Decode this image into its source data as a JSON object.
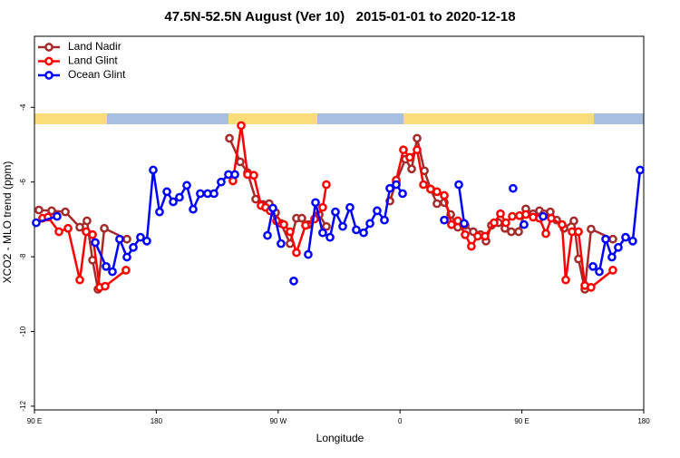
{
  "chart_data": {
    "type": "line",
    "title": "47.5N-52.5N August (Ver 10)   2015-01-01 to 2020-12-18",
    "xlabel": "Longitude",
    "ylabel": "XCO2 - MLO trend (ppm)",
    "xlim": [
      90,
      540
    ],
    "ylim": [
      -12.1,
      -2.1
    ],
    "xticks": [
      {
        "value": 90,
        "label": "90 E"
      },
      180,
      {
        "value": 270,
        "label": "90 W"
      },
      {
        "value": 360,
        "label": "0"
      },
      {
        "value": 450,
        "label": "90 E"
      },
      {
        "value": 540,
        "label": "180"
      }
    ],
    "yticks": [
      -4,
      -6,
      -8,
      -10,
      -12
    ],
    "legend": "top-left",
    "series": [
      {
        "name": "Land Nadir",
        "color": "#a52a2a",
        "x": [
          93.3,
          102.7,
          112.8,
          123.5,
          128.8,
          132.9,
          136.9,
          141.6,
          158.3,
          200,
          234,
          242,
          247.4,
          253.4,
          258.7,
          263.4,
          268.1,
          272.1,
          278.8,
          283.5,
          287.5,
          292.2,
          300.3,
          305.6,
          340,
          352.5,
          357.2,
          363.9,
          368.6,
          372.6,
          378,
          382.6,
          387.3,
          392.7,
          397.4,
          402.7,
          408.1,
          414.1,
          419.4,
          423.5,
          427.5,
          432.8,
          437.5,
          442.2,
          447.6,
          452.9,
          458.3,
          463,
          466.3,
          471,
          475.7,
          481.1,
          488.4,
          491.8,
          496.5,
          501.1,
          517.2
        ],
        "values": [
          -6.75,
          -6.77,
          -6.8,
          -7.21,
          -7.04,
          -8.09,
          -8.87,
          -7.24,
          -7.53,
          null,
          -4.83,
          -5.46,
          -5.75,
          -6.46,
          -6.6,
          -6.58,
          -6.82,
          -7.11,
          -7.65,
          -6.97,
          -6.97,
          -7.14,
          -6.87,
          -7.19,
          null,
          -6.51,
          -6.0,
          -5.39,
          -5.65,
          -4.83,
          -5.7,
          -6.19,
          -6.58,
          -6.55,
          -6.87,
          -7.21,
          -7.16,
          -7.33,
          -7.41,
          -7.58,
          -7.16,
          -7.09,
          -7.24,
          -7.33,
          -7.33,
          -6.72,
          -6.85,
          -6.77,
          -6.85,
          -6.8,
          -7.02,
          -7.24,
          -7.04,
          -8.06,
          -8.87,
          -7.26,
          -7.53
        ]
      },
      {
        "name": "Land Glint",
        "color": "#ff0000",
        "x": [
          96,
          100,
          108.1,
          114.8,
          123.5,
          128.2,
          132.9,
          138.2,
          142.2,
          157.6,
          200,
          236.6,
          242.7,
          247.4,
          252,
          257.4,
          260.7,
          264.1,
          268.8,
          274.2,
          278.8,
          283.5,
          290.2,
          296.9,
          302.9,
          305.6,
          340,
          357.2,
          362.5,
          367.2,
          372.6,
          377.3,
          382.6,
          387.3,
          392.7,
          398,
          402.7,
          408.1,
          412.7,
          417.4,
          422.8,
          429.5,
          434.2,
          438.2,
          442.9,
          448.2,
          452.9,
          458.3,
          463,
          467.7,
          471.7,
          479.7,
          482.4,
          487.1,
          491.8,
          496.5,
          501.1,
          517.2
        ],
        "values": [
          -6.97,
          -6.94,
          -7.33,
          -7.24,
          -8.62,
          -7.33,
          -7.41,
          -8.82,
          -8.79,
          -8.36,
          null,
          -5.97,
          -4.49,
          -5.8,
          -5.82,
          -6.63,
          -6.68,
          -6.77,
          -7.04,
          -7.14,
          -7.33,
          -7.89,
          -7.16,
          -6.99,
          -6.68,
          -6.07,
          null,
          -5.95,
          -5.14,
          -5.34,
          -5.14,
          -6.07,
          -6.19,
          -6.26,
          -6.36,
          -7.14,
          -7.04,
          -7.41,
          -7.72,
          -7.45,
          -7.45,
          -7.09,
          -6.85,
          -7.09,
          -6.92,
          -6.9,
          -6.87,
          -6.94,
          -6.97,
          -7.38,
          -6.97,
          -7.14,
          -8.62,
          -7.33,
          -7.33,
          -8.77,
          -8.82,
          -8.36
        ]
      },
      {
        "name": "Ocean Glint",
        "color": "#0000ff",
        "x": [
          91.3,
          106.7,
          110,
          134.9,
          142.9,
          147.6,
          152.9,
          158.3,
          163,
          168.3,
          173,
          177.7,
          182.4,
          187.8,
          192.5,
          197.1,
          202.5,
          207.2,
          212.5,
          217.9,
          222.6,
          227.9,
          233.3,
          238,
          265,
          262.1,
          266.1,
          272.1,
          275,
          281.5,
          285,
          292.2,
          297.6,
          302.9,
          308.3,
          312.3,
          317.7,
          323,
          327.7,
          333.1,
          337.8,
          343.1,
          348.5,
          352.5,
          357.2,
          361.9,
          380,
          392.7,
          395,
          403.4,
          407.4,
          430,
          443.5,
          446,
          451.6,
          455,
          465.7,
          480,
          502.5,
          507.2,
          511.9,
          516.5,
          521.2,
          526.6,
          531.9,
          537.3
        ],
        "values": [
          -7.09,
          -6.92,
          null,
          -7.62,
          -8.26,
          -8.4,
          -7.53,
          -8.01,
          -7.75,
          -7.48,
          -7.58,
          -5.68,
          -6.8,
          -6.26,
          -6.53,
          -6.41,
          -6.09,
          -6.73,
          -6.31,
          -6.31,
          -6.31,
          -6.0,
          -5.8,
          -5.8,
          null,
          -7.43,
          -6.7,
          -7.65,
          null,
          -8.65,
          null,
          -7.94,
          -6.55,
          -7.36,
          -7.48,
          -6.8,
          -7.19,
          -6.68,
          -7.28,
          -7.36,
          -7.11,
          -6.77,
          -7.02,
          -6.17,
          -6.07,
          -6.31,
          null,
          -7.02,
          null,
          -6.07,
          -7.11,
          null,
          -6.17,
          null,
          -7.14,
          null,
          -6.92,
          null,
          -8.26,
          -8.4,
          -7.53,
          -8.01,
          -7.75,
          -7.48,
          -7.58,
          -5.68
        ]
      }
    ]
  }
}
